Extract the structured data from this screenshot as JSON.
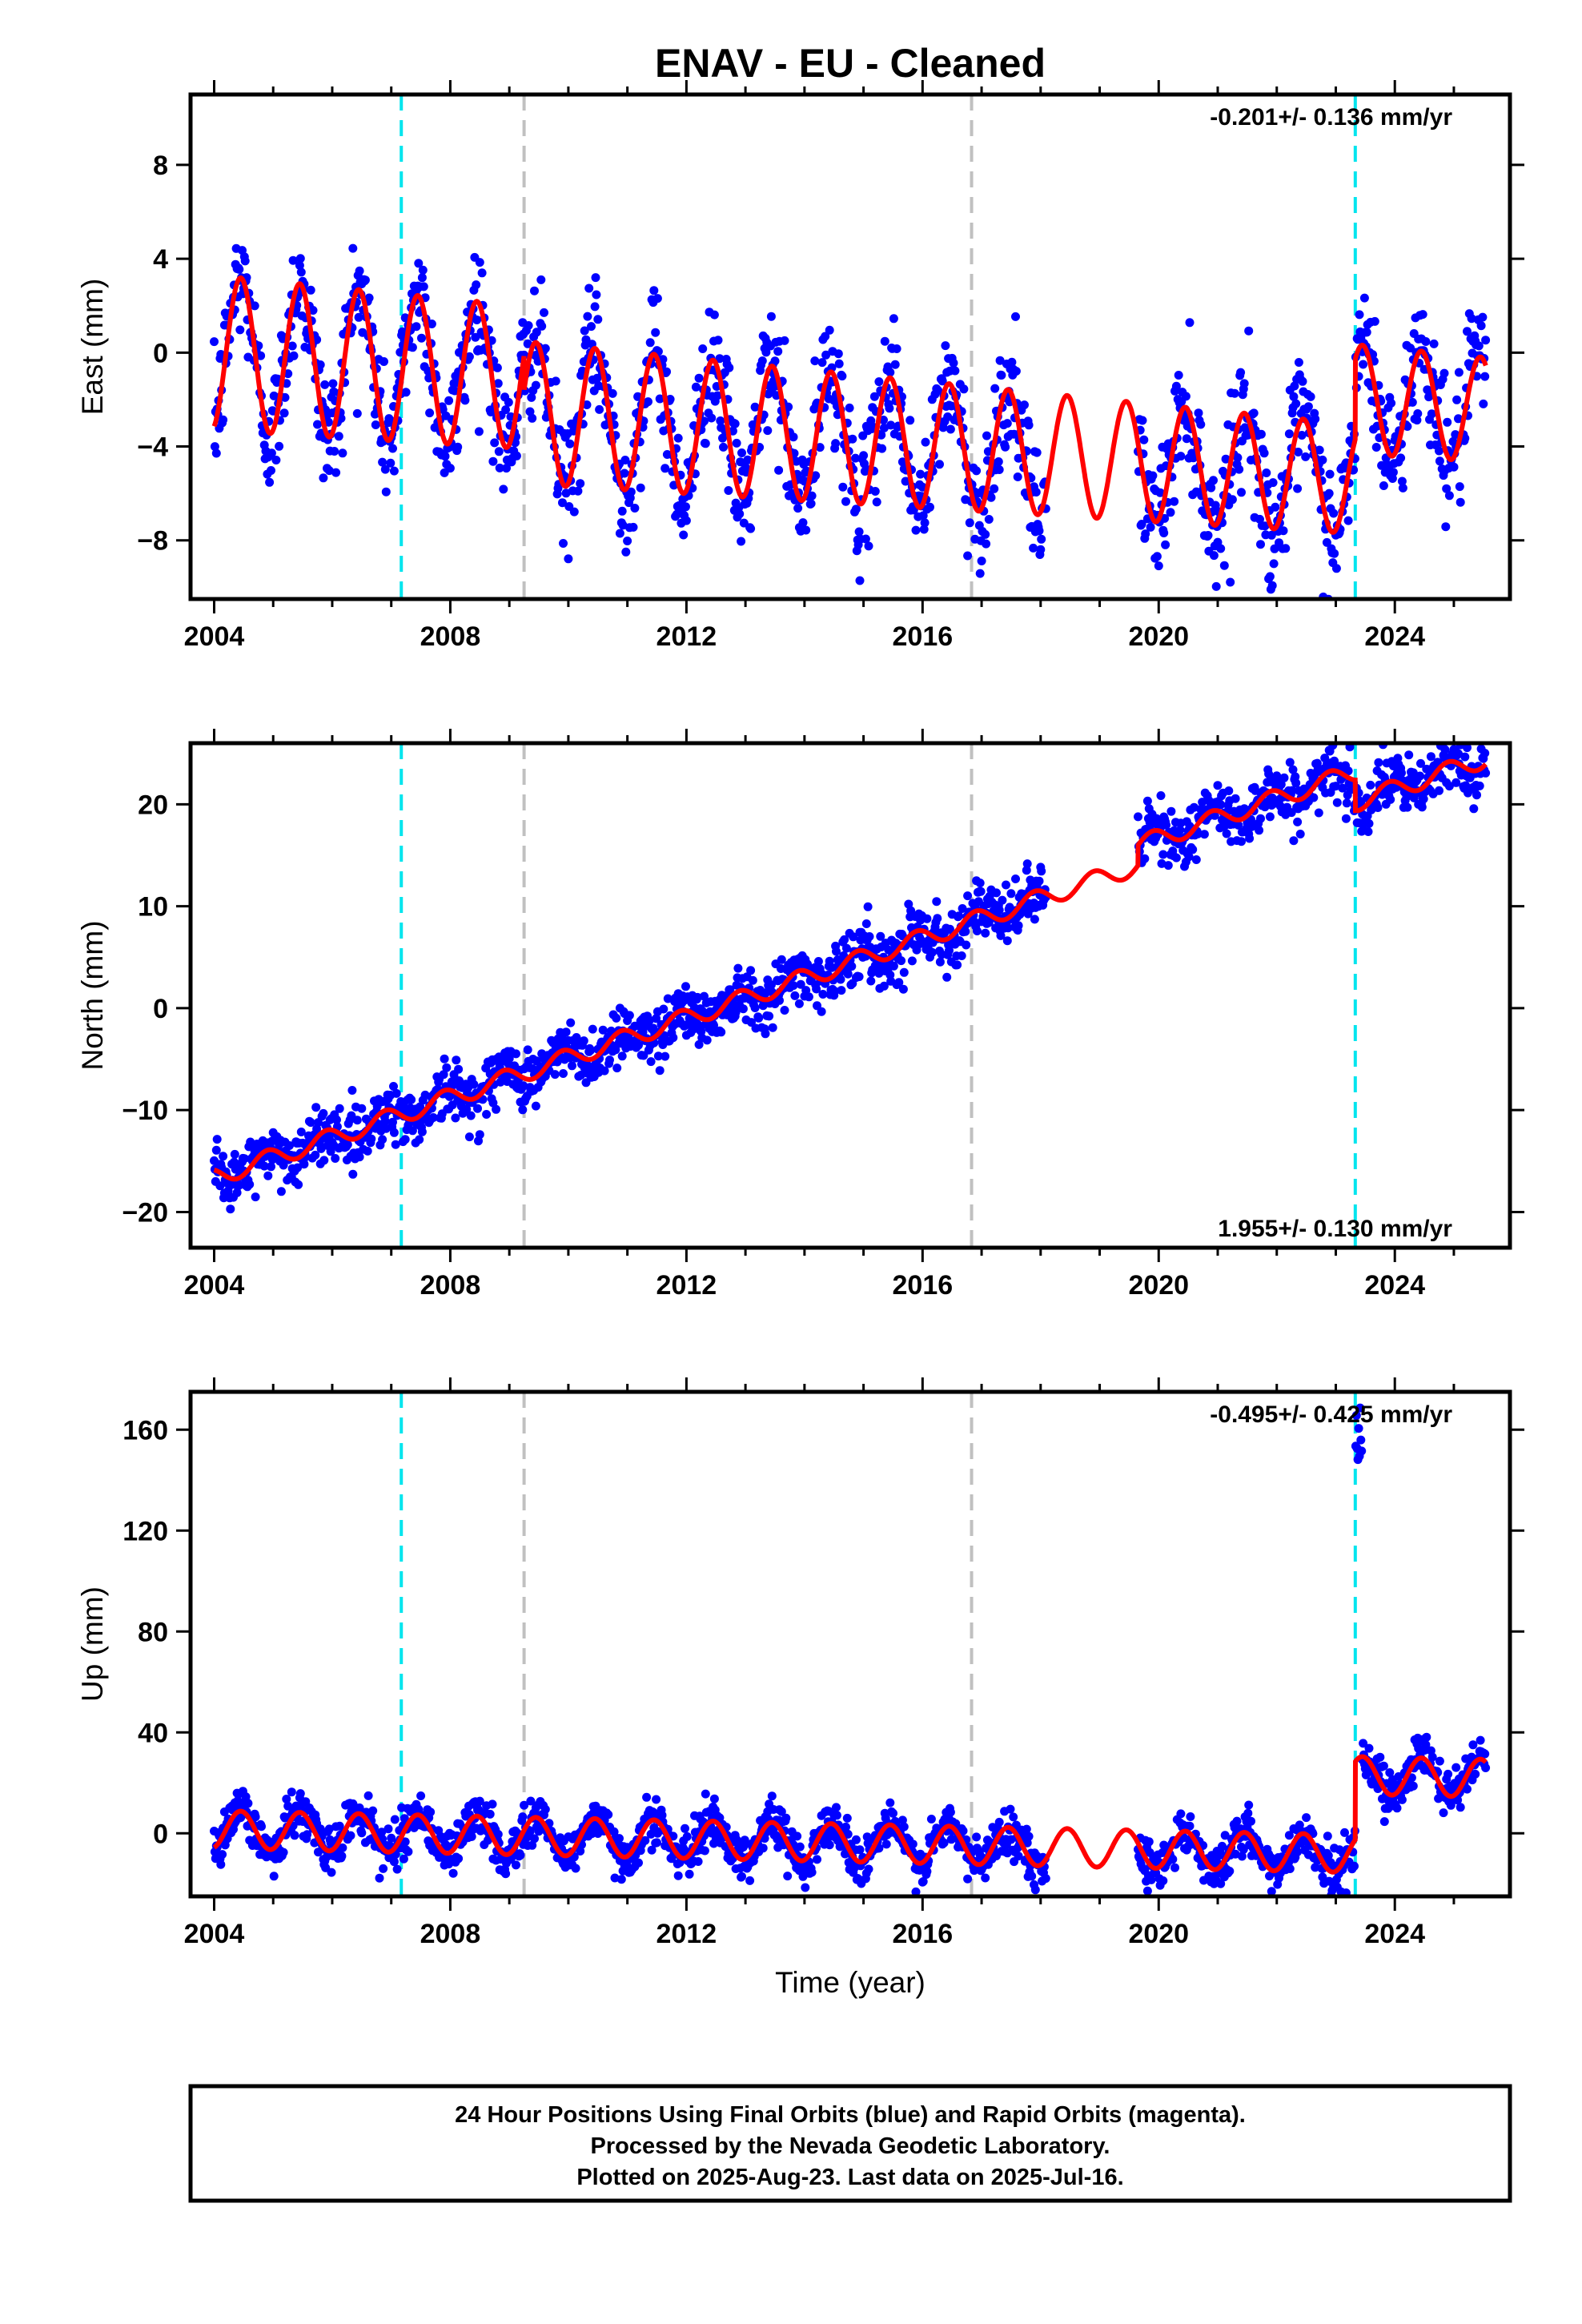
{
  "chart_data": {
    "type": "scatter",
    "title": "ENAV  - EU - Cleaned",
    "xlabel": "Time (year)",
    "xlim": [
      2003.6,
      2025.95
    ],
    "xticks": [
      2004,
      2008,
      2012,
      2016,
      2020,
      2024
    ],
    "vertical_lines": [
      {
        "x": 2007.17,
        "color": "#00e5ee",
        "style": "dashed"
      },
      {
        "x": 2009.25,
        "color": "#c0c0c0",
        "style": "dashed"
      },
      {
        "x": 2016.83,
        "color": "#c0c0c0",
        "style": "dashed"
      },
      {
        "x": 2023.33,
        "color": "#00e5ee",
        "style": "dashed"
      }
    ],
    "series_colors": {
      "data": "#0000ff",
      "model": "#ff0000"
    },
    "data_gap": [
      2018.1,
      2019.65
    ],
    "panels": [
      {
        "id": "east",
        "ylabel": "East (mm)",
        "ylim": [
          -10.5,
          11
        ],
        "yticks": [
          8,
          4,
          0,
          -4,
          -8
        ],
        "yticklabels": [
          "8",
          "4",
          "0",
          "−4",
          "−8"
        ],
        "rate": "-0.201+/- 0.136 mm/yr",
        "rate_pos": "top-right",
        "model": {
          "offset": 0,
          "trend": -0.201,
          "amplitude": 3.3,
          "amp_growth": -0.05,
          "phase_peak": 0.45,
          "steps": [
            {
              "x": 2009.25,
              "dy": -1.5
            },
            {
              "x": 2023.33,
              "dy": 3.4
            }
          ],
          "seg_offsets": [
            {
              "from": 2019.65,
              "to": 2023.33,
              "dy": 0
            }
          ]
        },
        "noise": 1.3
      },
      {
        "id": "north",
        "ylabel": "North (mm)",
        "ylim": [
          -23.5,
          26
        ],
        "yticks": [
          20,
          10,
          0,
          -10,
          -20
        ],
        "yticklabels": [
          "20",
          "10",
          "0",
          "−10",
          "−20"
        ],
        "rate": "1.955+/- 0.130 mm/yr",
        "rate_pos": "bottom-right",
        "model": {
          "offset": -16.6,
          "trend": 1.955,
          "amplitude": 0.9,
          "amp_growth": 0,
          "phase_peak": 0.9,
          "steps": [
            {
              "x": 2019.65,
              "dy": 2.0
            },
            {
              "x": 2023.33,
              "dy": -3.0
            }
          ],
          "seg_offsets": []
        },
        "noise": 1.4
      },
      {
        "id": "up",
        "ylabel": "Up (mm)",
        "ylim": [
          -25,
          175
        ],
        "yticks": [
          160,
          120,
          80,
          40,
          0
        ],
        "yticklabels": [
          "160",
          "120",
          "80",
          "40",
          "0"
        ],
        "rate": "-0.495+/- 0.425 mm/yr",
        "rate_pos": "top-right",
        "model": {
          "offset": 1.5,
          "trend": -0.495,
          "amplitude": 7.5,
          "amp_growth": 0,
          "phase_peak": 0.45,
          "steps": [
            {
              "x": 2023.33,
              "dy": 31
            }
          ],
          "seg_offsets": []
        },
        "noise": 4.5,
        "outlier_cluster": {
          "x": [
            2023.33,
            2023.45
          ],
          "y": [
            148,
            170
          ]
        }
      }
    ],
    "footer": [
      "24 Hour Positions Using Final Orbits (blue) and Rapid Orbits (magenta).",
      "Processed by the Nevada Geodetic Laboratory.",
      "Plotted on 2025-Aug-23. Last data on 2025-Jul-16."
    ],
    "data_start": 2004.0,
    "data_end": 2025.54
  }
}
